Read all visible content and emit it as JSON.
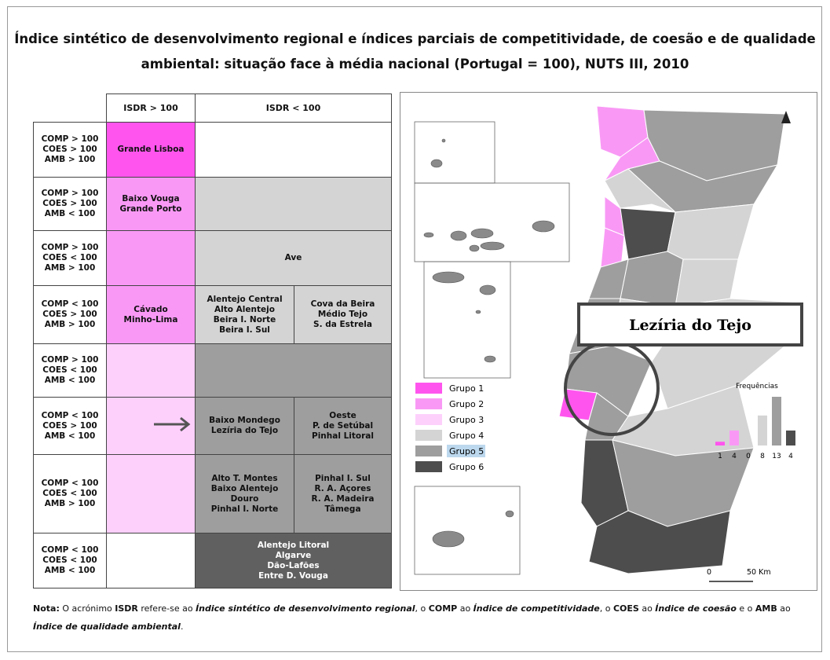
{
  "title": [
    "Índice sintético de desenvolvimento regional e índices parciais de competitividade, de coesão e de qualidade",
    "ambiental: situação face à média nacional (Portugal = 100), NUTS III, 2010"
  ],
  "table": {
    "header": [
      "ISDR > 100",
      "ISDR < 100"
    ],
    "rows": [
      {
        "label": [
          "COMP > 100",
          "COES > 100",
          "AMB > 100"
        ],
        "above": {
          "lines": [
            "Grande Lisboa"
          ],
          "color": "#ff55ee"
        },
        "below": [
          {
            "lines": [],
            "color": "#ffffff"
          }
        ]
      },
      {
        "label": [
          "COMP > 100",
          "COES > 100",
          "AMB < 100"
        ],
        "above": {
          "lines": [
            "Baixo Vouga",
            "Grande Porto"
          ],
          "color": "#f999f5"
        },
        "below": [
          {
            "lines": [],
            "color": "#d4d4d4"
          }
        ]
      },
      {
        "label": [
          "COMP > 100",
          "COES < 100",
          "AMB > 100"
        ],
        "above": {
          "lines": [],
          "color": "#f999f5"
        },
        "below": [
          {
            "lines": [
              "Ave"
            ],
            "color": "#d4d4d4"
          }
        ]
      },
      {
        "label": [
          "COMP < 100",
          "COES > 100",
          "AMB > 100"
        ],
        "above": {
          "lines": [
            "Cávado",
            "Minho-Lima"
          ],
          "color": "#f999f5"
        },
        "below": [
          {
            "lines": [
              "Alentejo Central",
              "Alto Alentejo",
              "Beira I. Norte",
              "Beira I. Sul"
            ],
            "color": "#d4d4d4"
          },
          {
            "lines": [
              "Cova da Beira",
              "Médio Tejo",
              "S. da Estrela"
            ],
            "color": "#d4d4d4"
          }
        ]
      },
      {
        "label": [
          "COMP > 100",
          "COES < 100",
          "AMB < 100"
        ],
        "above": {
          "lines": [],
          "color": "#fdd0fc"
        },
        "below": [
          {
            "lines": [],
            "color": "#9e9e9e"
          }
        ]
      },
      {
        "label": [
          "COMP < 100",
          "COES > 100",
          "AMB < 100"
        ],
        "above": {
          "lines": [],
          "color": "#fdd0fc"
        },
        "below": [
          {
            "lines": [
              "Baixo Mondego",
              "Lezíria do Tejo"
            ],
            "color": "#9e9e9e"
          },
          {
            "lines": [
              "Oeste",
              "P. de Setúbal",
              "Pinhal Litoral"
            ],
            "color": "#9e9e9e"
          }
        ]
      },
      {
        "label": [
          "COMP < 100",
          "COES < 100",
          "AMB > 100"
        ],
        "above": {
          "lines": [],
          "color": "#fdd0fc"
        },
        "below": [
          {
            "lines": [
              "Alto T. Montes",
              "Baixo Alentejo",
              "Douro",
              "Pinhal I. Norte"
            ],
            "color": "#9e9e9e"
          },
          {
            "lines": [
              "Pinhal I. Sul",
              "R. A. Açores",
              "R. A. Madeira",
              "Tâmega"
            ],
            "color": "#9e9e9e"
          }
        ]
      },
      {
        "label": [
          "COMP < 100",
          "COES < 100",
          "AMB < 100"
        ],
        "above": {
          "lines": [],
          "color": "#ffffff"
        },
        "below": [
          {
            "lines": [
              "Alentejo Litoral",
              "Algarve",
              "Dão-Lafões",
              "Entre D. Vouga"
            ],
            "color": "#606060"
          }
        ]
      }
    ]
  },
  "map": {
    "legend": [
      {
        "label": "Grupo 1",
        "color": "#ff55ee"
      },
      {
        "label": "Grupo 2",
        "color": "#f999f5"
      },
      {
        "label": "Grupo 3",
        "color": "#fdd0fc"
      },
      {
        "label": "Grupo 4",
        "color": "#d4d4d4"
      },
      {
        "label": "Grupo 5",
        "color": "#9e9e9e",
        "highlighted": true
      },
      {
        "label": "Grupo 6",
        "color": "#4d4d4d"
      }
    ],
    "histogram": {
      "title": "Frequências",
      "values": [
        1,
        4,
        0,
        8,
        13,
        4
      ],
      "colors": [
        "#ff55ee",
        "#f999f5",
        "#fdd0fc",
        "#d4d4d4",
        "#9e9e9e",
        "#4d4d4d"
      ]
    },
    "scale": [
      "0",
      "50 Km"
    ],
    "annotation": "Lezíria do Tejo"
  },
  "note": [
    {
      "text": "Nota:",
      "style": "bold"
    },
    {
      "text": " O acrónimo ",
      "style": "normal"
    },
    {
      "text": "ISDR",
      "style": "bold"
    },
    {
      "text": " refere-se ao ",
      "style": "normal"
    },
    {
      "text": "Índice sintético de desenvolvimento regional",
      "style": "bold-italic"
    },
    {
      "text": ", o ",
      "style": "normal"
    },
    {
      "text": "COMP",
      "style": "bold"
    },
    {
      "text": " ao ",
      "style": "normal"
    },
    {
      "text": "Índice de competitividade",
      "style": "bold-italic"
    },
    {
      "text": ", o ",
      "style": "normal"
    },
    {
      "text": "COES",
      "style": "bold"
    },
    {
      "text": " ao ",
      "style": "normal"
    },
    {
      "text": "Índice de coesão",
      "style": "bold-italic"
    },
    {
      "text": " e o ",
      "style": "normal"
    },
    {
      "text": "AMB",
      "style": "bold"
    },
    {
      "text": " ao ",
      "style": "normal"
    },
    {
      "text": "Índice de qualidade ambiental",
      "style": "bold-italic"
    },
    {
      "text": ".",
      "style": "normal"
    }
  ]
}
